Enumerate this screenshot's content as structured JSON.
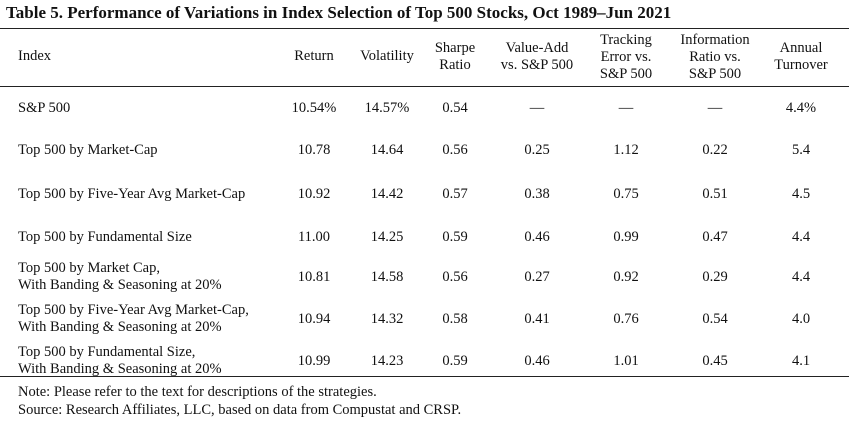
{
  "title": "Table 5. Performance of Variations in Index Selection of Top 500 Stocks, Oct 1989–Jun 2021",
  "headers": [
    "Index",
    "Return",
    "Volatility",
    "Sharpe\nRatio",
    "Value-Add\nvs. S&P 500",
    "Tracking\nError vs.\nS&P 500",
    "Information\nRatio vs.\nS&P 500",
    "Annual\nTurnover"
  ],
  "rows": [
    [
      "S&P 500",
      "10.54%",
      "14.57%",
      "0.54",
      "—",
      "—",
      "—",
      "4.4%"
    ],
    [
      "Top 500 by Market-Cap",
      "10.78",
      "14.64",
      "0.56",
      "0.25",
      "1.12",
      "0.22",
      "5.4"
    ],
    [
      "Top 500 by Five-Year Avg Market-Cap",
      "10.92",
      "14.42",
      "0.57",
      "0.38",
      "0.75",
      "0.51",
      "4.5"
    ],
    [
      "Top 500 by Fundamental Size",
      "11.00",
      "14.25",
      "0.59",
      "0.46",
      "0.99",
      "0.47",
      "4.4"
    ],
    [
      "Top 500 by Market Cap,\nWith Banding & Seasoning at 20%",
      "10.81",
      "14.58",
      "0.56",
      "0.27",
      "0.92",
      "0.29",
      "4.4"
    ],
    [
      "Top 500 by Five-Year Avg Market-Cap,\nWith Banding & Seasoning at 20%",
      "10.94",
      "14.32",
      "0.58",
      "0.41",
      "0.76",
      "0.54",
      "4.0"
    ],
    [
      "Top 500 by Fundamental Size,\nWith Banding & Seasoning at 20%",
      "10.99",
      "14.23",
      "0.59",
      "0.46",
      "1.01",
      "0.45",
      "4.1"
    ]
  ],
  "notes": [
    "Note: Please refer to the text for descriptions of the strategies.",
    "Source: Research Affiliates, LLC, based on data from Compustat and CRSP."
  ]
}
